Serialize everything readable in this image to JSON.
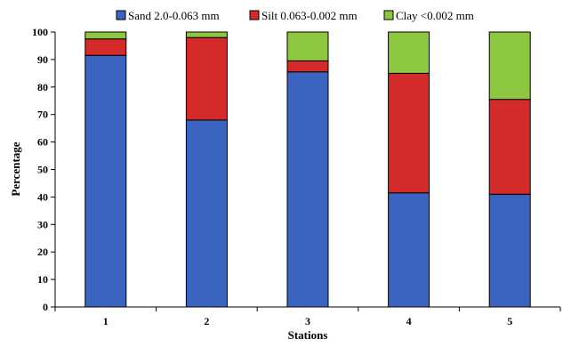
{
  "chart_data": {
    "type": "bar",
    "stacked": true,
    "categories": [
      "1",
      "2",
      "3",
      "4",
      "5"
    ],
    "series": [
      {
        "name": "Sand 2.0-0.063 mm",
        "color": "#3a64c0",
        "values": [
          91.5,
          68,
          85.5,
          41.5,
          41
        ]
      },
      {
        "name": "Silt 0.063-0.002 mm",
        "color": "#d42a2a",
        "values": [
          6,
          30,
          4,
          43.5,
          34.5
        ]
      },
      {
        "name": "Clay <0.002 mm",
        "color": "#8dc63f",
        "values": [
          2.5,
          2,
          10.5,
          15,
          24.5
        ]
      }
    ],
    "title": "",
    "xlabel": "Stations",
    "ylabel": "Percentage",
    "ylim": [
      0,
      100
    ],
    "ytick_step": 10,
    "grid": false,
    "legend_position": "top"
  }
}
